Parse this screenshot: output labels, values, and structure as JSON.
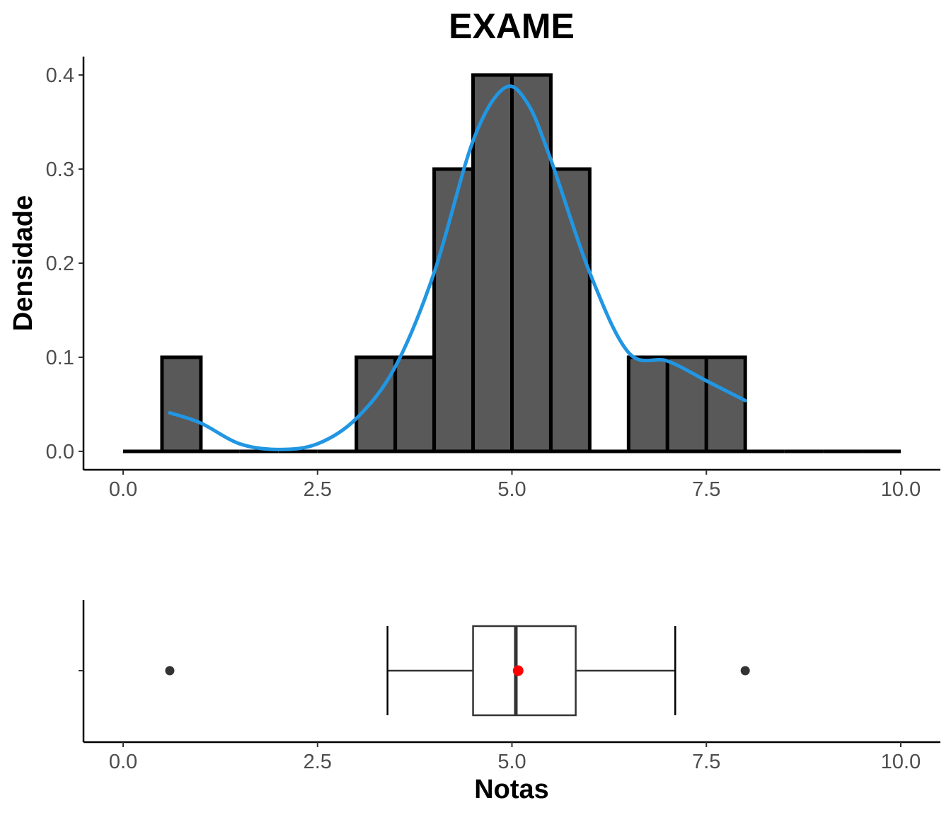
{
  "chart_data": [
    {
      "type": "bar",
      "subtype": "histogram",
      "title": "EXAME",
      "xlabel": "",
      "ylabel": "Densidade",
      "xlim": [
        0,
        10
      ],
      "ylim": [
        0,
        0.4
      ],
      "bin_width": 0.5,
      "bins": [
        {
          "x0": 0.0,
          "x1": 0.5,
          "density": 0.0
        },
        {
          "x0": 0.5,
          "x1": 1.0,
          "density": 0.1
        },
        {
          "x0": 1.0,
          "x1": 1.5,
          "density": 0.0
        },
        {
          "x0": 1.5,
          "x1": 2.0,
          "density": 0.0
        },
        {
          "x0": 2.0,
          "x1": 2.5,
          "density": 0.0
        },
        {
          "x0": 2.5,
          "x1": 3.0,
          "density": 0.0
        },
        {
          "x0": 3.0,
          "x1": 3.5,
          "density": 0.1
        },
        {
          "x0": 3.5,
          "x1": 4.0,
          "density": 0.1
        },
        {
          "x0": 4.0,
          "x1": 4.5,
          "density": 0.3
        },
        {
          "x0": 4.5,
          "x1": 5.0,
          "density": 0.4
        },
        {
          "x0": 5.0,
          "x1": 5.5,
          "density": 0.4
        },
        {
          "x0": 5.5,
          "x1": 6.0,
          "density": 0.3
        },
        {
          "x0": 6.0,
          "x1": 6.5,
          "density": 0.0
        },
        {
          "x0": 6.5,
          "x1": 7.0,
          "density": 0.1
        },
        {
          "x0": 7.0,
          "x1": 7.5,
          "density": 0.1
        },
        {
          "x0": 7.5,
          "x1": 8.0,
          "density": 0.1
        },
        {
          "x0": 8.0,
          "x1": 8.5,
          "density": 0.0
        },
        {
          "x0": 8.5,
          "x1": 9.0,
          "density": 0.0
        },
        {
          "x0": 9.0,
          "x1": 9.5,
          "density": 0.0
        },
        {
          "x0": 9.5,
          "x1": 10.0,
          "density": 0.0
        }
      ],
      "density_curve": {
        "color": "#2196e3",
        "x": [
          0.6,
          1.0,
          1.5,
          2.0,
          2.5,
          3.0,
          3.5,
          4.0,
          4.5,
          4.9,
          5.2,
          5.5,
          6.0,
          6.5,
          7.0,
          7.5,
          8.0
        ],
        "y": [
          0.041,
          0.03,
          0.008,
          0.002,
          0.008,
          0.035,
          0.09,
          0.19,
          0.33,
          0.386,
          0.37,
          0.31,
          0.19,
          0.105,
          0.096,
          0.075,
          0.054
        ]
      },
      "x_ticks": [
        "0.0",
        "2.5",
        "5.0",
        "7.5",
        "10.0"
      ],
      "y_ticks": [
        "0.0",
        "0.1",
        "0.2",
        "0.3",
        "0.4"
      ],
      "grid": false,
      "colors": {
        "bar_fill": "#595959",
        "bar_stroke": "#000000"
      }
    },
    {
      "type": "boxplot",
      "xlabel": "Notas",
      "xlim": [
        0,
        10
      ],
      "box": {
        "whisker_low": 3.4,
        "q1": 4.5,
        "median": 5.05,
        "q3": 5.82,
        "whisker_high": 7.1
      },
      "mean": 5.08,
      "outliers": [
        0.6,
        8.0
      ],
      "x_ticks": [
        "0.0",
        "2.5",
        "5.0",
        "7.5",
        "10.0"
      ],
      "grid": false,
      "colors": {
        "box_stroke": "#333333",
        "mean_point": "#ff0000",
        "outlier": "#333333"
      }
    }
  ]
}
